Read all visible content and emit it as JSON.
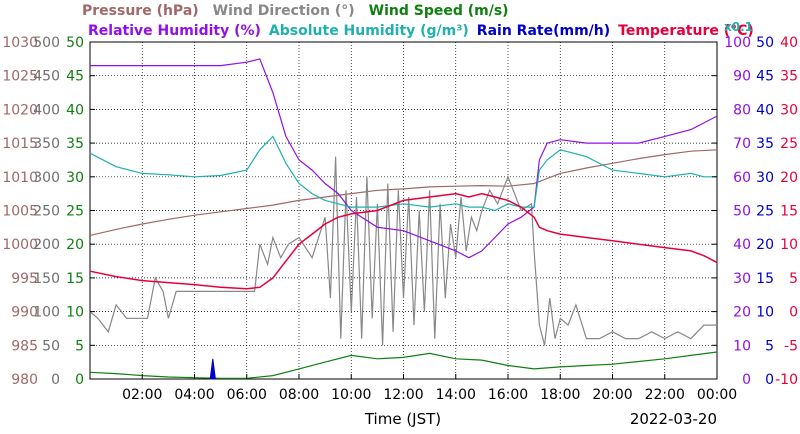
{
  "chart_data": {
    "type": "line",
    "xlabel": "Time (JST)",
    "date": "2022-03-20",
    "x_ticks": [
      "02:00",
      "04:00",
      "06:00",
      "08:00",
      "10:00",
      "12:00",
      "14:00",
      "16:00",
      "18:00",
      "20:00",
      "22:00",
      "00:00"
    ],
    "xlim_hours": [
      0,
      24
    ],
    "grid": true,
    "legend": {
      "placement": "top",
      "row1": [
        {
          "label": "Pressure (hPa)",
          "color": "#a06868"
        },
        {
          "label": "Wind Direction (°)",
          "color": "#888888"
        },
        {
          "label": "Wind Speed (m/s)",
          "color": "#108010"
        }
      ],
      "row2": [
        {
          "label": "Relative Humidity (%)",
          "color": "#9010e8"
        },
        {
          "label": "Absolute Humidity (g/m³)",
          "color": "#20b0b0"
        },
        {
          "label": "Rain Rate(mm/h)",
          "color": "#0000c8"
        },
        {
          "label": "Temperature (°C)",
          "color": "#e8003c"
        }
      ],
      "rain_scale_note": "x0.1"
    },
    "axes": {
      "pressure": {
        "ticks": [
          "1030",
          "1025",
          "1020",
          "1015",
          "1010",
          "1005",
          "1000",
          "995",
          "990",
          "985",
          "980"
        ],
        "range": [
          980,
          1030
        ],
        "color": "#a06868"
      },
      "wind_direction": {
        "ticks": [
          "500",
          "450",
          "400",
          "350",
          "300",
          "250",
          "200",
          "150",
          "100",
          "50",
          "0"
        ],
        "range": [
          0,
          500
        ],
        "color": "#707070"
      },
      "wind_speed": {
        "ticks": [
          "50",
          "45",
          "40",
          "35",
          "30",
          "25",
          "20",
          "15",
          "10",
          "5",
          "0"
        ],
        "range": [
          0,
          50
        ],
        "color": "#108010"
      },
      "relative_humidity": {
        "ticks": [
          "100",
          "90",
          "80",
          "70",
          "60",
          "50",
          "40",
          "30",
          "20",
          "10",
          "0"
        ],
        "range": [
          0,
          100
        ],
        "color": "#9010e8"
      },
      "rain_rate": {
        "ticks": [
          "50",
          "45",
          "40",
          "35",
          "30",
          "25",
          "20",
          "15",
          "10",
          "5",
          "0"
        ],
        "range": [
          0,
          50
        ],
        "color": "#0000c8"
      },
      "temperature": {
        "ticks": [
          "40",
          "35",
          "30",
          "25",
          "20",
          "15",
          "10",
          "5",
          "0",
          "-5",
          "-10"
        ],
        "range": [
          -10,
          40
        ],
        "color": "#e8003c"
      }
    },
    "series": [
      {
        "name": "Pressure (hPa)",
        "axis": "pressure",
        "x": [
          0,
          1,
          2,
          3,
          4,
          5,
          6,
          7,
          8,
          9,
          10,
          11,
          12,
          13,
          14,
          15,
          16,
          17,
          18,
          19,
          20,
          21,
          22,
          23,
          24
        ],
        "values": [
          1001.3,
          1002.2,
          1003.0,
          1003.7,
          1004.3,
          1004.8,
          1005.3,
          1005.8,
          1006.5,
          1007.0,
          1007.5,
          1008.0,
          1008.2,
          1008.5,
          1008.6,
          1008.7,
          1008.6,
          1009.0,
          1010.5,
          1011.3,
          1012.0,
          1012.7,
          1013.3,
          1013.8,
          1014.0
        ]
      },
      {
        "name": "Wind Direction (°)",
        "axis": "wind_direction",
        "x": [
          0,
          0.3,
          0.7,
          1.0,
          1.4,
          1.8,
          2.2,
          2.5,
          2.8,
          3.0,
          3.3,
          3.6,
          4.0,
          4.5,
          5.0,
          5.5,
          6.0,
          6.3,
          6.5,
          6.8,
          7.0,
          7.3,
          7.6,
          8.0,
          8.5,
          9.0,
          9.2,
          9.4,
          9.6,
          9.8,
          10.0,
          10.2,
          10.4,
          10.6,
          10.8,
          11.0,
          11.2,
          11.4,
          11.6,
          11.8,
          12.0,
          12.2,
          12.4,
          12.6,
          12.8,
          13.0,
          13.2,
          13.4,
          13.6,
          13.8,
          14.0,
          14.2,
          14.4,
          14.6,
          14.8,
          15.0,
          15.3,
          15.6,
          16.0,
          16.5,
          16.9,
          17.0,
          17.2,
          17.4,
          17.6,
          17.8,
          18.0,
          18.3,
          18.6,
          19.0,
          19.5,
          20.0,
          20.5,
          21.0,
          21.5,
          22.0,
          22.5,
          23.0,
          23.5,
          24.0
        ],
        "values": [
          100,
          90,
          70,
          110,
          90,
          90,
          90,
          150,
          130,
          90,
          130,
          130,
          130,
          130,
          130,
          130,
          130,
          130,
          200,
          170,
          210,
          180,
          200,
          210,
          180,
          240,
          120,
          330,
          60,
          280,
          100,
          270,
          60,
          300,
          90,
          260,
          50,
          290,
          70,
          280,
          120,
          270,
          80,
          250,
          100,
          280,
          60,
          260,
          120,
          230,
          180,
          270,
          190,
          240,
          220,
          250,
          280,
          260,
          300,
          250,
          260,
          190,
          80,
          50,
          120,
          60,
          90,
          80,
          110,
          60,
          60,
          70,
          60,
          60,
          70,
          60,
          70,
          60,
          80,
          80
        ]
      },
      {
        "name": "Wind Speed (m/s)",
        "axis": "wind_speed",
        "x": [
          0,
          1,
          2,
          3,
          4,
          5,
          6,
          7,
          8,
          9,
          10,
          11,
          12,
          13,
          14,
          15,
          16,
          17,
          18,
          19,
          20,
          21,
          22,
          23,
          24
        ],
        "values": [
          1,
          0.8,
          0.5,
          0.3,
          0.2,
          0.1,
          0.1,
          0.5,
          1.5,
          2.5,
          3.5,
          3.0,
          3.2,
          3.8,
          3.0,
          2.8,
          2.0,
          1.5,
          1.8,
          2.0,
          2.2,
          2.6,
          3.0,
          3.5,
          4.0
        ]
      },
      {
        "name": "Relative Humidity (%)",
        "axis": "relative_humidity",
        "x": [
          0,
          1,
          2,
          3,
          4,
          5,
          6,
          6.5,
          7,
          7.5,
          8,
          8.5,
          9,
          9.5,
          10,
          11,
          12,
          13,
          14,
          14.5,
          15,
          15.5,
          16,
          16.5,
          17,
          17.2,
          17.5,
          18,
          19,
          20,
          21,
          22,
          23,
          23.5,
          24
        ],
        "values": [
          93,
          93,
          93,
          93,
          93,
          93,
          94,
          95,
          85,
          72,
          65,
          62,
          58,
          55,
          50,
          45,
          44,
          41,
          38,
          36,
          38,
          42,
          46,
          48,
          51,
          65,
          70,
          71,
          70,
          70,
          70,
          72,
          74,
          76,
          78
        ]
      },
      {
        "name": "Absolute Humidity (g/m³)",
        "axis": "wind_speed",
        "x": [
          0,
          1,
          2,
          3,
          4,
          5,
          6,
          6.5,
          7,
          7.5,
          8,
          8.5,
          9,
          9.5,
          10,
          11,
          12,
          13,
          14,
          14.5,
          15,
          15.5,
          16,
          16.5,
          17,
          17.2,
          17.5,
          18,
          19,
          20,
          21,
          22,
          23,
          23.5,
          24
        ],
        "values": [
          33.5,
          31.5,
          30.5,
          30.3,
          30.0,
          30.2,
          31.0,
          34.0,
          36.0,
          32.0,
          29.0,
          27.5,
          26.5,
          26.0,
          25.5,
          25.5,
          26.0,
          25.5,
          26.0,
          25.5,
          25.5,
          25.0,
          26.0,
          25.5,
          25.5,
          31.0,
          32.5,
          34.0,
          33.0,
          31.0,
          30.5,
          30.0,
          30.5,
          30.0,
          30.0
        ]
      },
      {
        "name": "Rain Rate(mm/h)",
        "axis": "rain_rate",
        "x": [
          4.6,
          4.7,
          4.8
        ],
        "values": [
          0,
          3,
          0
        ]
      },
      {
        "name": "Temperature (°C)",
        "axis": "temperature",
        "x": [
          0,
          1,
          2,
          3,
          4,
          5,
          6,
          6.5,
          7,
          7.5,
          8,
          8.5,
          9,
          9.5,
          10,
          11,
          12,
          13,
          14,
          14.5,
          15,
          15.5,
          16,
          16.5,
          17,
          17.2,
          17.5,
          18,
          19,
          20,
          21,
          22,
          23,
          23.5,
          24
        ],
        "values": [
          6.0,
          5.2,
          4.6,
          4.3,
          4.0,
          3.6,
          3.4,
          3.6,
          5.0,
          7.5,
          10.0,
          11.5,
          13.0,
          14.0,
          14.5,
          15.0,
          16.5,
          17.0,
          17.5,
          17.0,
          17.5,
          17.0,
          16.5,
          15.5,
          14.0,
          12.5,
          12.0,
          11.5,
          11.0,
          10.5,
          10.0,
          9.5,
          9.0,
          8.3,
          7.3
        ]
      }
    ]
  }
}
